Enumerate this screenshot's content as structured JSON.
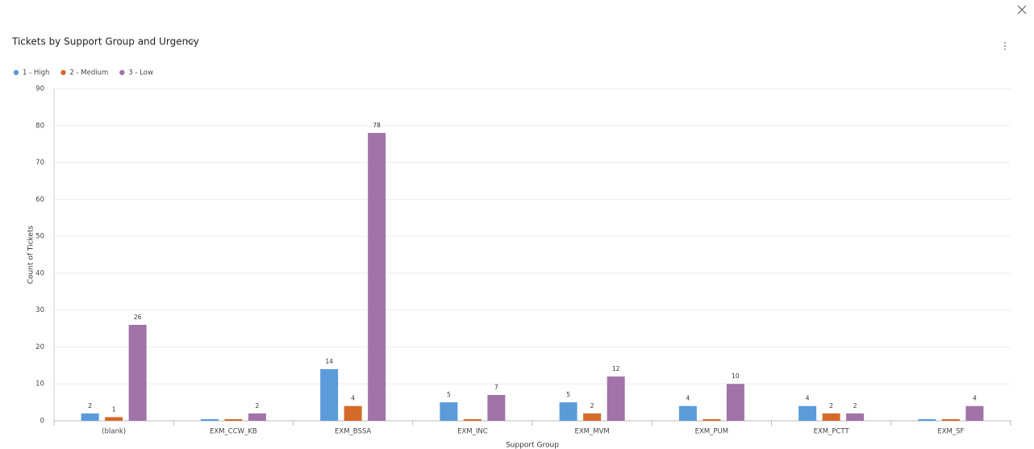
{
  "chart_data": {
    "type": "bar",
    "title": "Tickets by Support Group and Urgency",
    "x_label": "Support Group",
    "y_label": "Count of Tickets",
    "categories": [
      "(blank)",
      "EXM_CCW_KB",
      "EXM_BSSA",
      "EXM_INC",
      "EXM_MVM",
      "EXM_PUM",
      "EXM_PCTT",
      "EXM_SF"
    ],
    "series": [
      {
        "name": "1 - High",
        "color": "#5b9bd9",
        "values": [
          2,
          0,
          14,
          5,
          5,
          4,
          4,
          0
        ]
      },
      {
        "name": "2 - Medium",
        "color": "#d5692a",
        "values": [
          1,
          0,
          4,
          0,
          2,
          0,
          2,
          0
        ]
      },
      {
        "name": "3 - Low",
        "color": "#a173a8",
        "values": [
          26,
          2,
          78,
          7,
          12,
          10,
          2,
          4
        ]
      }
    ],
    "ylim": [
      0,
      90
    ],
    "yticks": [
      0,
      10,
      20,
      30,
      40,
      50,
      60,
      70,
      80,
      90
    ],
    "grid": true
  }
}
